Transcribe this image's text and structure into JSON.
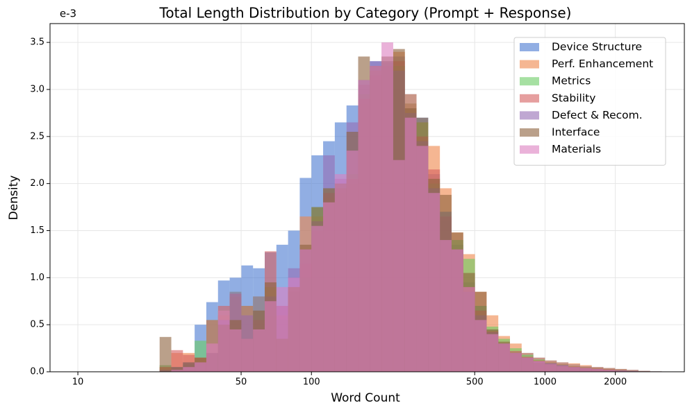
{
  "chart_data": {
    "type": "histogram",
    "title": "Total Length Distribution by Category (Prompt + Response)",
    "x_label": "Word Count",
    "y_label": "Density",
    "y_offset_label": "e-3",
    "x_log": true,
    "grid": true,
    "legend": "upper right",
    "xlim": [
      7.6,
      3950
    ],
    "ylim": [
      0,
      3.7
    ],
    "xticks": [
      10,
      50,
      100,
      500,
      1000,
      2000
    ],
    "yticks": [
      {
        "value": 0,
        "label": "0.0"
      },
      {
        "value": 0.5,
        "label": "0.5"
      },
      {
        "value": 1,
        "label": "1.0"
      },
      {
        "value": 1.5,
        "label": "1.5"
      },
      {
        "value": 2,
        "label": "2.0"
      },
      {
        "value": 2.5,
        "label": "2.5"
      },
      {
        "value": 3,
        "label": "3.0"
      },
      {
        "value": 3.5,
        "label": "3.5"
      }
    ],
    "bins": [
      22.39,
      25.12,
      28.18,
      31.62,
      35.48,
      39.81,
      44.67,
      50.12,
      56.23,
      63.1,
      70.79,
      79.43,
      89.13,
      100,
      112.2,
      125.9,
      141.3,
      158.5,
      177.8,
      199.5,
      223.9,
      251.2,
      281.8,
      316.2,
      354.8,
      398.1,
      446.7,
      501.2,
      562.3,
      631,
      707.9,
      794.3,
      891.3,
      1000,
      1122,
      1259,
      1413,
      1585,
      1778,
      1995,
      2239,
      2512,
      2818,
      3162
    ],
    "series": [
      {
        "name": "Device Structure",
        "color": "#4878d0",
        "values": [
          0,
          0,
          0,
          0.5,
          0.74,
          0.97,
          1.0,
          1.13,
          1.1,
          1.27,
          1.35,
          1.5,
          2.06,
          2.3,
          2.45,
          2.65,
          2.83,
          3.1,
          3.3,
          3.28,
          3.35,
          2.95,
          2.7,
          2.1,
          1.6,
          1.35,
          0.95,
          0.7,
          0.45,
          0.3,
          0.22,
          0.2,
          0.15,
          0.12,
          0.1,
          0.08,
          0.06,
          0.05,
          0.04,
          0.03,
          0.02,
          0.01,
          0.005
        ]
      },
      {
        "name": "Perf. Enhancement",
        "color": "#ee854a",
        "values": [
          0.05,
          0.2,
          0.2,
          0.15,
          0.2,
          0.6,
          0.8,
          0.6,
          0.8,
          0.6,
          0.6,
          0.9,
          1.65,
          1.65,
          1.85,
          1.9,
          2.0,
          2.85,
          3.2,
          3.3,
          3.4,
          2.95,
          2.65,
          2.4,
          1.95,
          1.48,
          1.25,
          0.85,
          0.6,
          0.38,
          0.3,
          0.2,
          0.15,
          0.12,
          0.1,
          0.09,
          0.07,
          0.05,
          0.04,
          0.03,
          0.02,
          0.01,
          0.005
        ]
      },
      {
        "name": "Metrics",
        "color": "#6acc64",
        "values": [
          0.07,
          0.05,
          0.08,
          0.33,
          0.55,
          0.65,
          0.85,
          0.7,
          0.8,
          0.9,
          0.55,
          0.85,
          1.0,
          1.75,
          1.95,
          1.95,
          2.1,
          2.95,
          3.1,
          3.3,
          3.25,
          2.85,
          2.65,
          2.0,
          1.7,
          1.4,
          1.2,
          0.7,
          0.48,
          0.35,
          0.25,
          0.18,
          0.13,
          0.1,
          0.08,
          0.06,
          0.05,
          0.04,
          0.03,
          0.02,
          0.01,
          0.005,
          0
        ]
      },
      {
        "name": "Stability",
        "color": "#d65f5f",
        "values": [
          0.05,
          0.23,
          0.18,
          0.15,
          0.55,
          0.7,
          0.83,
          0.7,
          0.55,
          1.28,
          0.7,
          0.85,
          1.15,
          1.5,
          1.9,
          1.95,
          2.05,
          2.9,
          3.15,
          3.25,
          3.3,
          2.85,
          2.5,
          2.15,
          1.65,
          1.3,
          0.9,
          0.65,
          0.43,
          0.3,
          0.22,
          0.16,
          0.12,
          0.1,
          0.08,
          0.06,
          0.05,
          0.04,
          0.03,
          0.02,
          0.01,
          0.005,
          0
        ]
      },
      {
        "name": "Defect & Recom.",
        "color": "#956cb4",
        "values": [
          0.02,
          0.05,
          0.1,
          0.1,
          0.2,
          0.55,
          0.85,
          0.6,
          0.8,
          0.8,
          0.7,
          1.1,
          1.3,
          1.6,
          2.3,
          2.05,
          2.65,
          3.05,
          3.3,
          3.3,
          3.2,
          2.75,
          2.45,
          1.95,
          1.7,
          1.3,
          0.85,
          0.6,
          0.42,
          0.3,
          0.2,
          0.15,
          0.11,
          0.09,
          0.07,
          0.05,
          0.04,
          0.03,
          0.02,
          0.015,
          0.01,
          0.005,
          0
        ]
      },
      {
        "name": "Interface",
        "color": "#8c613c",
        "values": [
          0.37,
          0.05,
          0.1,
          0.15,
          0.2,
          0.5,
          0.55,
          0.35,
          0.65,
          0.95,
          0.35,
          0.9,
          1.35,
          1.75,
          1.95,
          2.0,
          2.55,
          3.35,
          3.25,
          3.35,
          3.43,
          2.8,
          2.7,
          2.05,
          1.88,
          1.48,
          1.05,
          0.85,
          0.45,
          0.32,
          0.2,
          0.15,
          0.1,
          0.08,
          0.06,
          0.05,
          0.04,
          0.03,
          0.02,
          0.01,
          0.005,
          0,
          0
        ]
      },
      {
        "name": "Materials",
        "color": "#dc7ec0",
        "values": [
          0,
          0.02,
          0.05,
          0.1,
          0.3,
          0.65,
          0.45,
          0.35,
          0.45,
          0.75,
          0.9,
          1.0,
          1.3,
          1.55,
          1.8,
          2.1,
          2.35,
          3.1,
          3.25,
          3.5,
          2.25,
          2.7,
          2.4,
          1.9,
          1.4,
          1.3,
          0.9,
          0.55,
          0.4,
          0.3,
          0.2,
          0.15,
          0.11,
          0.08,
          0.06,
          0.05,
          0.04,
          0.03,
          0.02,
          0.01,
          0.005,
          0,
          0
        ]
      }
    ]
  }
}
